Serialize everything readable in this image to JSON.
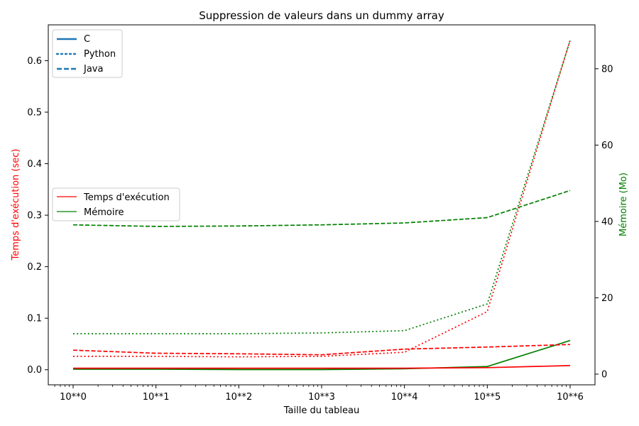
{
  "chart_data": {
    "type": "line",
    "title": "Suppression de valeurs dans un dummy array",
    "xlabel": "Taille du tableau",
    "ylabel_left": "Temps d'exécution (sec)",
    "ylabel_right": "Mémoire (Mo)",
    "x_scale": "log",
    "x": [
      1,
      10,
      100,
      1000,
      10000,
      100000,
      1000000
    ],
    "x_tick_labels": [
      "10**0",
      "10**1",
      "10**2",
      "10**3",
      "10**4",
      "10**5",
      "10**6"
    ],
    "ylim_left": [
      -0.0293,
      0.6695
    ],
    "ylim_right": [
      -2.8,
      91.5
    ],
    "yticks_left": [
      0.0,
      0.1,
      0.2,
      0.3,
      0.4,
      0.5,
      0.6
    ],
    "yticks_left_labels": [
      "0.0",
      "0.1",
      "0.2",
      "0.3",
      "0.4",
      "0.5",
      "0.6"
    ],
    "yticks_right": [
      0,
      20,
      40,
      60,
      80
    ],
    "yticks_right_labels": [
      "0",
      "20",
      "40",
      "60",
      "80"
    ],
    "colors": {
      "time": "#ff0000",
      "memory": "#008000",
      "legend_style": "#1f77b4",
      "axis": "#000000"
    },
    "series": [
      {
        "name": "C - Temps d'exécution",
        "language": "C",
        "metric": "time",
        "axis": "left",
        "style": "solid",
        "values": [
          0.003,
          0.003,
          0.003,
          0.003,
          0.003,
          0.004,
          0.008
        ]
      },
      {
        "name": "Python - Temps d'exécution",
        "language": "Python",
        "metric": "time",
        "axis": "left",
        "style": "dotted",
        "values": [
          0.026,
          0.026,
          0.025,
          0.026,
          0.034,
          0.113,
          0.64
        ]
      },
      {
        "name": "Java - Temps d'exécution",
        "language": "Java",
        "metric": "time",
        "axis": "left",
        "style": "dashed",
        "values": [
          0.038,
          0.032,
          0.031,
          0.029,
          0.04,
          0.044,
          0.049
        ]
      },
      {
        "name": "C - Mémoire",
        "language": "C",
        "metric": "memory",
        "axis": "right",
        "style": "solid",
        "values": [
          1.3,
          1.3,
          1.2,
          1.2,
          1.4,
          2.0,
          8.8
        ]
      },
      {
        "name": "Python - Mémoire",
        "language": "Python",
        "metric": "memory",
        "axis": "right",
        "style": "dotted",
        "values": [
          10.6,
          10.6,
          10.6,
          10.8,
          11.4,
          18.4,
          87.4
        ]
      },
      {
        "name": "Java - Mémoire",
        "language": "Java",
        "metric": "memory",
        "axis": "right",
        "style": "dashed",
        "values": [
          39.1,
          38.7,
          38.8,
          39.1,
          39.6,
          41.0,
          48.1
        ]
      }
    ],
    "legend_styles": {
      "position": "top-left",
      "entries": [
        {
          "label": "C",
          "style": "solid"
        },
        {
          "label": "Python",
          "style": "dotted"
        },
        {
          "label": "Java",
          "style": "dashed"
        }
      ]
    },
    "legend_metrics": {
      "position": "center-left",
      "entries": [
        {
          "label": "Temps d'exécution",
          "metric": "time"
        },
        {
          "label": "Mémoire",
          "metric": "memory"
        }
      ]
    }
  }
}
